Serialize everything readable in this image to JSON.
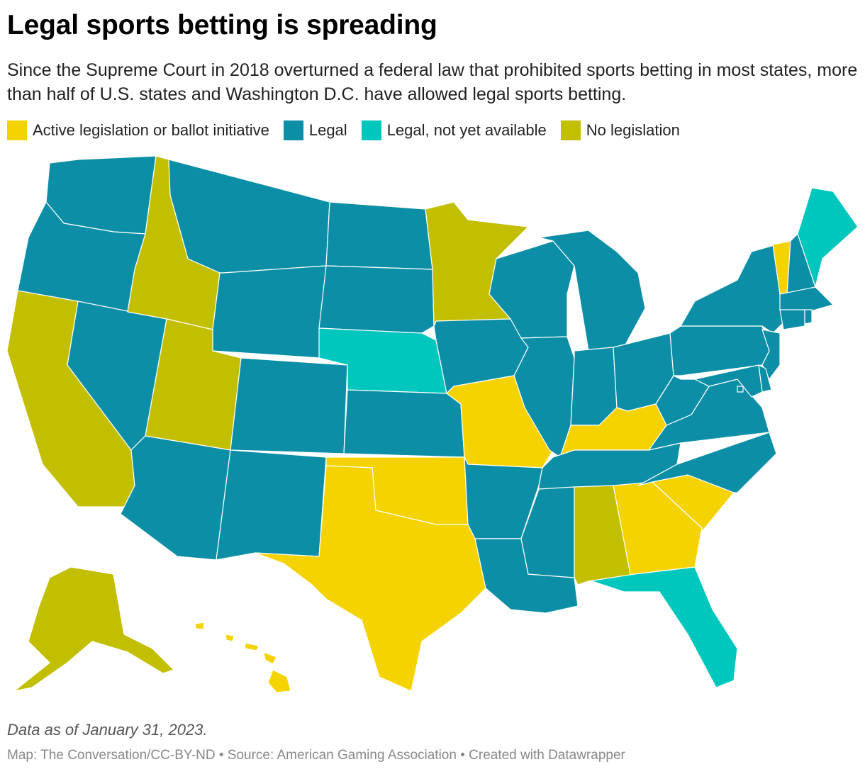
{
  "header": {
    "title": "Legal sports betting is spreading",
    "subtitle": "Since the Supreme Court in 2018 overturned a federal law that prohibited sports betting in most states, more than half of U.S. states and Washington D.C. have allowed legal sports betting."
  },
  "legend": [
    {
      "label": "Active legislation or ballot initiative",
      "color": "#f5d300"
    },
    {
      "label": "Legal",
      "color": "#0c8fa6"
    },
    {
      "label": "Legal, not yet available",
      "color": "#00c7bd"
    },
    {
      "label": "No legislation",
      "color": "#c2bf00"
    }
  ],
  "colors": {
    "active": "#f5d300",
    "legal": "#0c8fa6",
    "legal_not_yet": "#00c7bd",
    "none": "#c2bf00"
  },
  "states": {
    "WA": "legal",
    "OR": "legal",
    "CA": "none",
    "NV": "legal",
    "ID": "none",
    "MT": "legal",
    "WY": "legal",
    "UT": "none",
    "AZ": "legal",
    "CO": "legal",
    "NM": "legal",
    "ND": "legal",
    "SD": "legal",
    "NE": "legal_not_yet",
    "KS": "legal",
    "OK": "active",
    "TX": "active",
    "MN": "none",
    "IA": "legal",
    "MO": "active",
    "AR": "legal",
    "LA": "legal",
    "WI": "legal",
    "IL": "legal",
    "MI": "legal",
    "IN": "legal",
    "OH": "legal",
    "KY": "active",
    "TN": "legal",
    "MS": "legal",
    "AL": "none",
    "GA": "active",
    "FL": "legal_not_yet",
    "SC": "active",
    "NC": "legal",
    "VA": "legal",
    "WV": "legal",
    "PA": "legal",
    "NY": "legal",
    "VT": "active",
    "NH": "legal",
    "ME": "legal_not_yet",
    "MA": "legal",
    "CT": "legal",
    "RI": "legal",
    "NJ": "legal",
    "DE": "legal",
    "MD": "legal",
    "DC": "legal",
    "AK": "none",
    "HI": "active"
  },
  "footer": {
    "note": "Data as of January 31, 2023.",
    "credits": "Map: The Conversation/CC-BY-ND • Source: American Gaming Association • Created with Datawrapper"
  }
}
